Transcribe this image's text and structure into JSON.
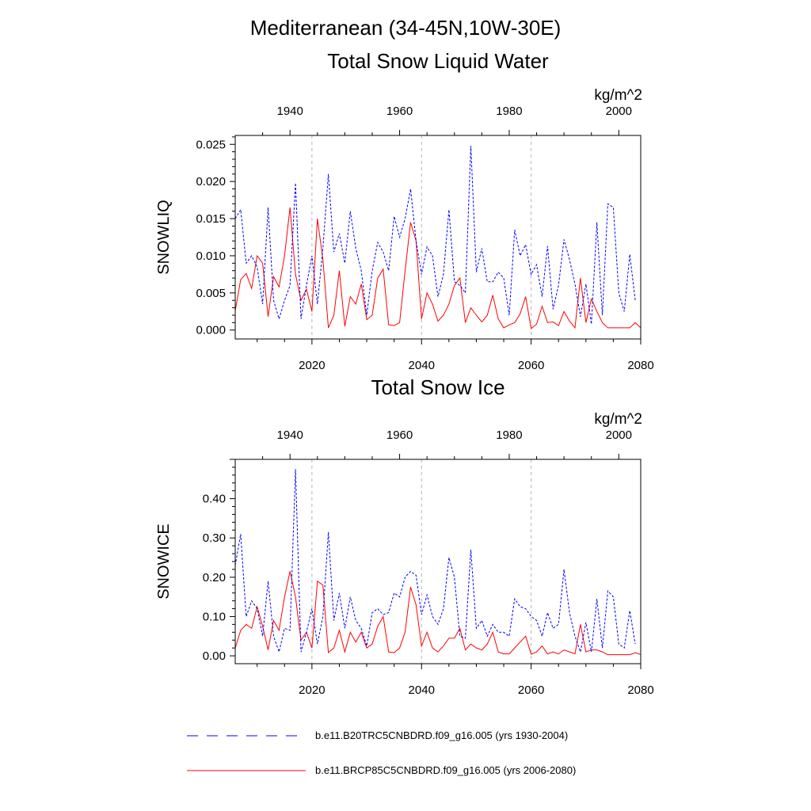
{
  "titles": {
    "main": "Mediterranean (34-45N,10W-30E)",
    "panel1": "Total Snow Liquid Water",
    "panel2": "Total Snow Ice"
  },
  "legend": {
    "entries": [
      {
        "label": "b.e11.B20TRC5CNBDRD.f09_g16.005 (yrs 1930-2004)",
        "color": "#0000ff",
        "style": "dashed"
      },
      {
        "label": "b.e11.BRCP85C5CNBDRD.f09_g16.005 (yrs 2006-2080)",
        "color": "#ff0000",
        "style": "solid"
      }
    ]
  },
  "chart_data": [
    {
      "type": "line",
      "title": "Total Snow Liquid Water",
      "ylabel": "SNOWLIQ",
      "units": "kg/m^2",
      "ylim": [
        -0.0012,
        0.0262
      ],
      "ytick_values": [
        0.0,
        0.005,
        0.01,
        0.015,
        0.02,
        0.025
      ],
      "ytick_labels": [
        "0.000",
        "0.005",
        "0.010",
        "0.015",
        "0.020",
        "0.025"
      ],
      "bottom_axis": {
        "label_color": "#ff0000",
        "xlim": [
          2006,
          2080
        ],
        "ticks": [
          2020,
          2040,
          2060,
          2080
        ]
      },
      "top_axis": {
        "label_color": "#0000ff",
        "xlim": [
          1930,
          2004
        ],
        "ticks": [
          1940,
          1960,
          1980,
          2000
        ]
      },
      "gridlines_x": [
        2020,
        2040,
        2060
      ],
      "series": [
        {
          "name": "b.e11.BRCP85C5CNBDRD.f09_g16.005 (yrs 2006-2080)",
          "axis": "bottom",
          "color": "#ff0000",
          "style": "solid",
          "x_start": 2006,
          "values": [
            0.0026,
            0.0068,
            0.0076,
            0.0056,
            0.01,
            0.009,
            0.0018,
            0.0072,
            0.0058,
            0.01,
            0.0165,
            0.0075,
            0.004,
            0.0055,
            0.0025,
            0.015,
            0.0095,
            0.0003,
            0.002,
            0.008,
            0.0005,
            0.0045,
            0.0035,
            0.0062,
            0.0014,
            0.002,
            0.007,
            0.0082,
            0.0007,
            0.0006,
            0.001,
            0.008,
            0.0145,
            0.012,
            0.0015,
            0.005,
            0.0035,
            0.0012,
            0.002,
            0.0035,
            0.006,
            0.007,
            0.001,
            0.003,
            0.002,
            0.0011,
            0.002,
            0.0047,
            0.0015,
            0.0003,
            0.0007,
            0.001,
            0.0022,
            0.0045,
            0.0002,
            0.0008,
            0.0032,
            0.001,
            0.0011,
            0.0006,
            0.0025,
            0.0012,
            0.0003,
            0.007,
            0.001,
            0.0042,
            0.0025,
            0.001,
            0.0003,
            0.0003,
            0.0003,
            0.0003,
            0.0003,
            0.001,
            0.0003
          ]
        },
        {
          "name": "b.e11.B20TRC5CNBDRD.f09_g16.005 (yrs 1930-2004)",
          "axis": "top",
          "color": "#0000ff",
          "style": "dashed",
          "x_start": 1930,
          "values": [
            0.015,
            0.0162,
            0.009,
            0.01,
            0.0085,
            0.0035,
            0.0165,
            0.004,
            0.0015,
            0.004,
            0.006,
            0.0198,
            0.0015,
            0.006,
            0.01,
            0.0035,
            0.011,
            0.021,
            0.0105,
            0.013,
            0.009,
            0.016,
            0.011,
            0.008,
            0.002,
            0.008,
            0.0118,
            0.0105,
            0.008,
            0.0153,
            0.0125,
            0.015,
            0.019,
            0.012,
            0.0075,
            0.0112,
            0.01,
            0.0045,
            0.0075,
            0.0162,
            0.0065,
            0.006,
            0.005,
            0.0248,
            0.0078,
            0.011,
            0.0065,
            0.0065,
            0.0078,
            0.007,
            0.002,
            0.0135,
            0.01,
            0.0115,
            0.0075,
            0.0088,
            0.0045,
            0.0113,
            0.0028,
            0.006,
            0.0122,
            0.0095,
            0.0062,
            0.0018,
            0.0062,
            0.0008,
            0.0145,
            0.002,
            0.017,
            0.0165,
            0.005,
            0.0025,
            0.0102,
            0.004
          ]
        }
      ]
    },
    {
      "type": "line",
      "title": "Total Snow Ice",
      "ylabel": "SNOWICE",
      "units": "kg/m^2",
      "ylim": [
        -0.02,
        0.5
      ],
      "ytick_values": [
        0.0,
        0.1,
        0.2,
        0.3,
        0.4
      ],
      "ytick_labels": [
        "0.00",
        "0.10",
        "0.20",
        "0.30",
        "0.40"
      ],
      "bottom_axis": {
        "label_color": "#ff0000",
        "xlim": [
          2006,
          2080
        ],
        "ticks": [
          2020,
          2040,
          2060,
          2080
        ]
      },
      "top_axis": {
        "label_color": "#0000ff",
        "xlim": [
          1930,
          2004
        ],
        "ticks": [
          1940,
          1960,
          1980,
          2000
        ]
      },
      "gridlines_x": [
        2020,
        2040,
        2060
      ],
      "series": [
        {
          "name": "b.e11.BRCP85C5CNBDRD.f09_g16.005 (yrs 2006-2080)",
          "axis": "bottom",
          "color": "#ff0000",
          "style": "solid",
          "x_start": 2006,
          "values": [
            0.02,
            0.065,
            0.08,
            0.07,
            0.125,
            0.075,
            0.015,
            0.09,
            0.065,
            0.15,
            0.215,
            0.15,
            0.04,
            0.06,
            0.02,
            0.19,
            0.18,
            0.008,
            0.02,
            0.065,
            0.01,
            0.06,
            0.035,
            0.06,
            0.02,
            0.03,
            0.075,
            0.1,
            0.01,
            0.008,
            0.02,
            0.06,
            0.175,
            0.13,
            0.025,
            0.06,
            0.02,
            0.01,
            0.025,
            0.045,
            0.045,
            0.07,
            0.015,
            0.03,
            0.02,
            0.015,
            0.03,
            0.06,
            0.01,
            0.005,
            0.005,
            0.02,
            0.035,
            0.05,
            0.004,
            0.01,
            0.025,
            0.005,
            0.01,
            0.005,
            0.015,
            0.01,
            0.005,
            0.08,
            0.01,
            0.015,
            0.015,
            0.01,
            0.003,
            0.003,
            0.003,
            0.003,
            0.003,
            0.008,
            0.003
          ]
        },
        {
          "name": "b.e11.B20TRC5CNBDRD.f09_g16.005 (yrs 1930-2004)",
          "axis": "top",
          "color": "#0000ff",
          "style": "dashed",
          "x_start": 1930,
          "values": [
            0.23,
            0.31,
            0.1,
            0.14,
            0.12,
            0.05,
            0.19,
            0.05,
            0.01,
            0.07,
            0.065,
            0.475,
            0.01,
            0.06,
            0.12,
            0.03,
            0.1,
            0.315,
            0.09,
            0.16,
            0.07,
            0.15,
            0.09,
            0.07,
            0.025,
            0.11,
            0.12,
            0.105,
            0.11,
            0.16,
            0.15,
            0.2,
            0.215,
            0.205,
            0.105,
            0.155,
            0.1,
            0.08,
            0.12,
            0.25,
            0.2,
            0.05,
            0.045,
            0.27,
            0.07,
            0.09,
            0.05,
            0.08,
            0.06,
            0.06,
            0.05,
            0.145,
            0.125,
            0.12,
            0.1,
            0.09,
            0.05,
            0.11,
            0.07,
            0.08,
            0.22,
            0.11,
            0.05,
            0.01,
            0.085,
            0.01,
            0.145,
            0.02,
            0.165,
            0.15,
            0.03,
            0.02,
            0.115,
            0.03
          ]
        }
      ]
    }
  ]
}
